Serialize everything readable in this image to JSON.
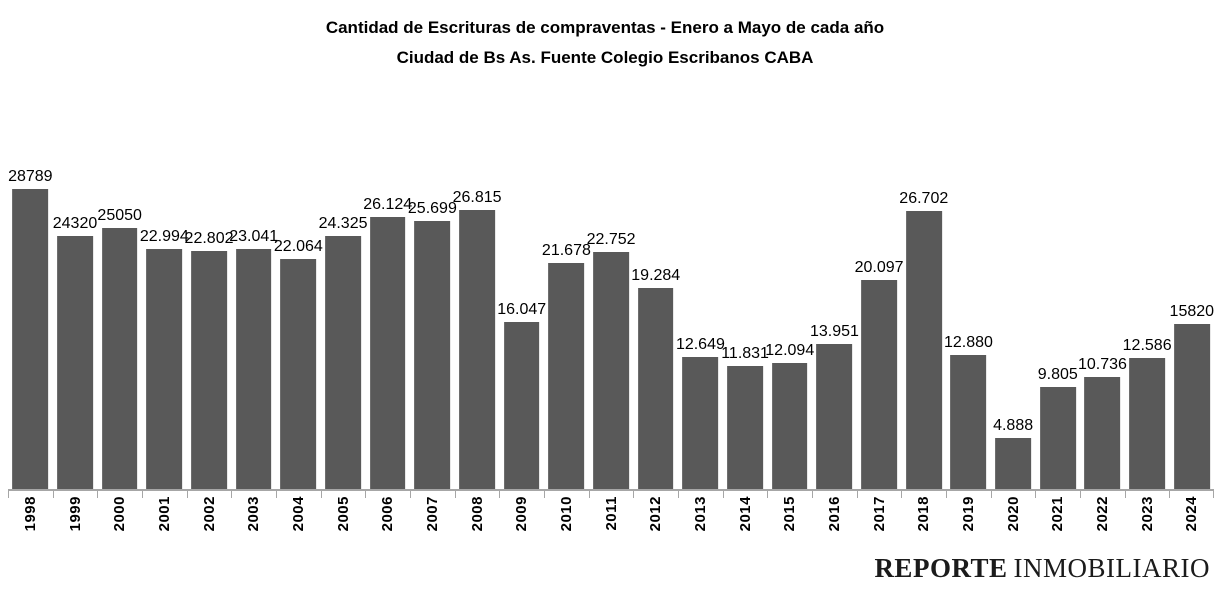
{
  "title": {
    "line1": "Cantidad de Escrituras de compraventas - Enero a Mayo de cada año",
    "line2": "Ciudad de Bs As. Fuente Colegio Escribanos CABA"
  },
  "logo": {
    "part1": "REPORTE",
    "part2": "INMOBILIARIO"
  },
  "colors": {
    "bar": "#595959",
    "axis": "#a6a6a6",
    "text": "#000000",
    "logo": "#1b1b1b"
  },
  "chart_data": {
    "type": "bar",
    "title": "Cantidad de Escrituras de compraventas - Enero a Mayo de cada año",
    "subtitle": "Ciudad de Bs As. Fuente Colegio Escribanos CABA",
    "xlabel": "",
    "ylabel": "",
    "ylim": [
      0,
      30000
    ],
    "grid": false,
    "legend": false,
    "bar_color": "#595959",
    "categories": [
      "1998",
      "1999",
      "2000",
      "2001",
      "2002",
      "2003",
      "2004",
      "2005",
      "2006",
      "2007",
      "2008",
      "2009",
      "2010",
      "2011",
      "2012",
      "2013",
      "2014",
      "2015",
      "2016",
      "2017",
      "2018",
      "2019",
      "2020",
      "2021",
      "2022",
      "2023",
      "2024"
    ],
    "values": [
      28789,
      24320,
      25050,
      22994,
      22802,
      23041,
      22064,
      24325,
      26124,
      25699,
      26815,
      16047,
      21678,
      22752,
      19284,
      12649,
      11831,
      12094,
      13951,
      20097,
      26702,
      12880,
      4888,
      9805,
      10736,
      12586,
      15820
    ],
    "value_labels": [
      "28789",
      "24320",
      "25050",
      "22.994",
      "22.802",
      "23.041",
      "22.064",
      "24.325",
      "26.124",
      "25.699",
      "26.815",
      "16.047",
      "21.678",
      "22.752",
      "19.284",
      "12.649",
      "11.831",
      "12.094",
      "13.951",
      "20.097",
      "26.702",
      "12.880",
      "4.888",
      "9.805",
      "10.736",
      "12.586",
      "15820"
    ]
  }
}
